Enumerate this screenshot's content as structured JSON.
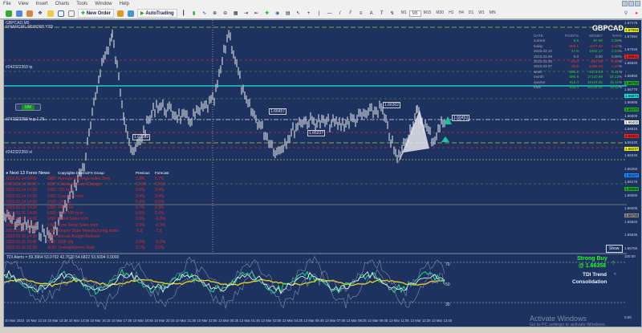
{
  "menu": [
    "File",
    "View",
    "Insert",
    "Charts",
    "Tools",
    "Window",
    "Help"
  ],
  "toolbar": {
    "new_order": "New Order",
    "autotrading": "AutoTrading",
    "timeframes": [
      "M1",
      "M5",
      "M15",
      "M30",
      "H1",
      "H4",
      "D1",
      "W1",
      "MN"
    ],
    "selected_tf": "M5"
  },
  "chart": {
    "symbol_header": "GBPCAD,M5",
    "report_title": "FINANCIAL REPORT YTD",
    "symbol": "GBPCAD",
    "mm_label": "MM",
    "show_button": "Show",
    "order_labels": [
      "#242322359 tp",
      "#242322359 buy 1.26",
      "#242322359 sl"
    ],
    "box_labels": [
      "1.66457",
      "1.66237",
      "1.66079",
      "1.66302",
      "1.66453"
    ]
  },
  "stats": {
    "headers": [
      "DATE",
      "POINTS",
      "MONEY",
      "%%",
      "%"
    ],
    "rows": [
      {
        "date": "current",
        "points": "5.9",
        "money": "87.90",
        "pct": "0.09",
        "color": "#33cc33"
      },
      {
        "date": "today",
        "points": "598.1",
        "money": "4377.60",
        "pct": "5.15",
        "color": "#ee3333"
      },
      {
        "date": "2023.03.10",
        "points": "47.5",
        "money": "1642.17",
        "pct": "2.04",
        "color": "#33cc33"
      },
      {
        "date": "2023.03.09",
        "points": "0.0",
        "money": "0.00",
        "pct": "0.00",
        "color": "#aaaaaa"
      },
      {
        "date": "2023.03.08",
        "points": "-63.0",
        "money": "-557.06",
        "pct": "-0.58",
        "color": "#ee3333"
      },
      {
        "date": "2023.03.07",
        "points": "-26.8",
        "money": "-1696.28",
        "pct": "-1.26",
        "color": "#ee3333"
      },
      {
        "date": "week",
        "points": "596.1",
        "money": "6174.63",
        "pct": "5.11",
        "color": "#33cc33"
      },
      {
        "date": "month",
        "points": "565.8",
        "money": "17120.99",
        "pct": "15.12",
        "color": "#33cc33"
      },
      {
        "date": "quarter",
        "points": "915.4",
        "money": "16124.92",
        "pct": "15.11",
        "color": "#33cc33"
      },
      {
        "date": "total",
        "points": "915.4",
        "money": "16124.92",
        "pct": "15.11",
        "color": "#33cc33"
      }
    ]
  },
  "news": {
    "title": "Next 13 Forex News",
    "copyright": "Copyrights DaVinciFX Group",
    "col_previous": "Previous",
    "col_forecast": "Forecast",
    "rows": [
      [
        "2023.03.14 09:00",
        "GBP: Average Earnings Index 3m/y",
        "5.9%",
        "5.7%"
      ],
      [
        "2023.03.14 09:00",
        "GBP: Claimant Count Change",
        "12.9K",
        "12.5K"
      ],
      [
        "2023.03.14 14:30",
        "USD: CPI m/m",
        "0.5%",
        "0.4%"
      ],
      [
        "2023.03.14 14:30",
        "USD: Core CPI m/m",
        "0.4%",
        "0.4%"
      ],
      [
        "2023.03.14 14:30",
        "USD: CPI y/y",
        "6.4%",
        "6.0%"
      ],
      [
        "2023.03.15 14:30",
        "USD: PPI m/m",
        "0.7%",
        "0.3%"
      ],
      [
        "2023.03.15 14:30",
        "USD: Core PPI m/m",
        "0.5%",
        "0.4%"
      ],
      [
        "2023.03.15 14:30",
        "USD: Retail Sales m/m",
        "3.0%",
        "-0.3%"
      ],
      [
        "2023.03.15 14:30",
        "USD: Core Retail Sales m/m",
        "2.3%",
        "-0.1%"
      ],
      [
        "2023.03.15 14:30",
        "USD: Empire State Manufacturing Index",
        "-5.8",
        "-7.8"
      ],
      [
        "2023.03.15 14:30",
        "GBP: Annual Budget Release",
        "",
        ""
      ],
      [
        "2023.03.15 23:45",
        "NZD: GDP q/q",
        "2.0%",
        "-0.2%"
      ],
      [
        "2023.03.16 02:30",
        "AUD: Unemployment Rate",
        "3.7%",
        "3.6%"
      ]
    ]
  },
  "indicator": {
    "title": "TDI Alerts = 59.3964 53.0792 42.7620 54.6822 53.5094 0.0000",
    "levels": [
      "70",
      "50",
      "30"
    ],
    "signal": "Strong Buy",
    "signal_price": "@ 1.66358",
    "trend_title": "TDI Trend",
    "trend_value": "Consolidation"
  },
  "price_axis": [
    "1.67175",
    "1.67094",
    "1.67025",
    "1.66940",
    "1.66855",
    "1.66770",
    "1.66685",
    "1.66600",
    "1.66515",
    "1.66430",
    "1.66345",
    "1.66260",
    "1.66175",
    "1.66090",
    "1.66005",
    "1.65920",
    "1.65835",
    "1.65750"
  ],
  "price_tags": [
    {
      "v": "1.67094",
      "c": "#eeee22"
    },
    {
      "v": "1.66911",
      "c": "#ee2222"
    },
    {
      "v": "1.66752",
      "c": "#22aa22"
    },
    {
      "v": "1.66574",
      "c": "#22dddd"
    },
    {
      "v": "1.66470",
      "c": "#22aa22"
    },
    {
      "v": "1.66402",
      "c": "#ffffff"
    },
    {
      "v": "1.66321",
      "c": "#ee2222"
    },
    {
      "v": "1.66237",
      "c": "#eeee22"
    },
    {
      "v": "1.66107",
      "c": "#2288ff"
    },
    {
      "v": "1.65950",
      "c": "#22aa22"
    },
    {
      "v": "1.65735",
      "c": "#888888"
    }
  ],
  "ind_axis": [
    "100.00",
    "0.00"
  ],
  "time_axis": [
    "10 Mar 2023",
    "10 Mar 12:15",
    "10 Mar 13:35",
    "10 Mar 14:55",
    "10 Mar 16:15",
    "10 Mar 17:35",
    "10 Mar 18:55",
    "10 Mar 20:15",
    "10 Mar 21:35",
    "10 Mar 22:55",
    "13 Mar 00:25",
    "13 Mar 01:45",
    "13 Mar 03:05",
    "13 Mar 04:25",
    "13 Mar 05:45",
    "13 Mar 07:05",
    "13 Mar 08:25",
    "13 Mar 09:45",
    "13 Mar 11:05",
    "13 Mar 12:25",
    "13 Mar 13:45"
  ],
  "watermark": {
    "title": "Activate Windows",
    "sub": "Go to PC settings to activate Windows."
  },
  "colors": {
    "chart_bg": "#1e3260",
    "bull": "#22ff22",
    "news": "#e02828"
  }
}
